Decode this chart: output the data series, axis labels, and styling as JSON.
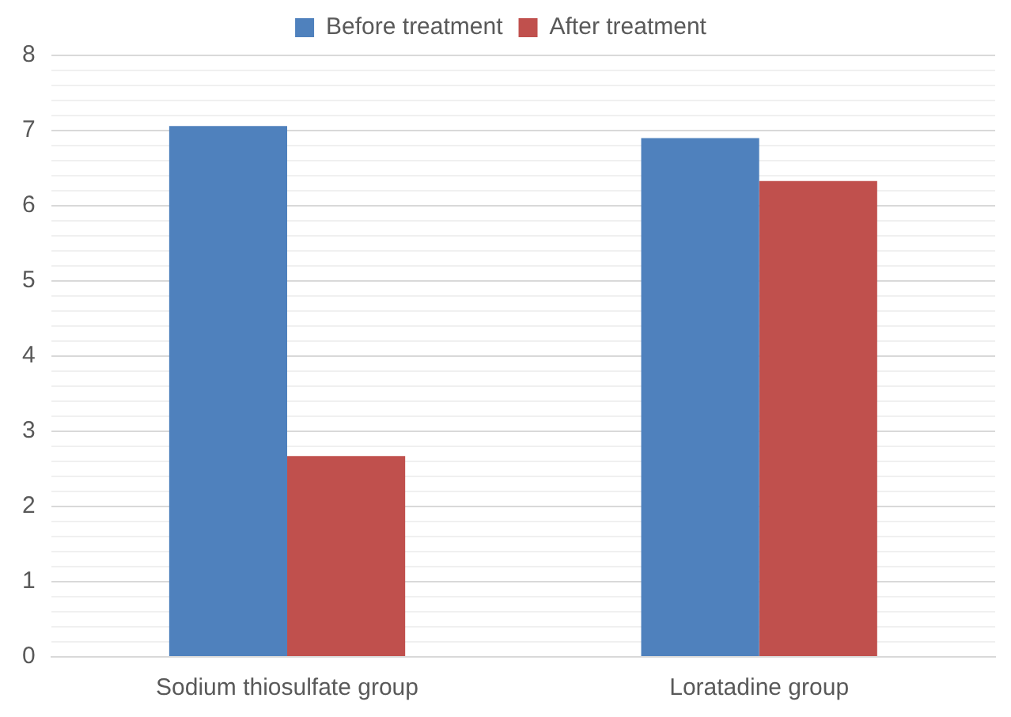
{
  "chart_data": {
    "type": "bar",
    "categories": [
      "Sodium thiosulfate group",
      "Loratadine group"
    ],
    "series": [
      {
        "name": "Before treatment",
        "color": "#4f81bd",
        "values": [
          7.06,
          6.9
        ]
      },
      {
        "name": "After treatment",
        "color": "#c0504d",
        "values": [
          2.67,
          6.33
        ]
      }
    ],
    "ylim": [
      0,
      8
    ],
    "yticks": [
      0,
      {
        "value": 0.2,
        "label": null
      },
      {
        "value": 0.4,
        "label": null
      },
      {
        "value": 0.6,
        "label": null
      },
      {
        "value": 0.8,
        "label": null
      },
      1,
      {
        "value": 1.2,
        "label": null
      },
      {
        "value": 1.4,
        "label": null
      },
      {
        "value": 1.6,
        "label": null
      },
      {
        "value": 1.8,
        "label": null
      },
      2,
      {
        "value": 2.2,
        "label": null
      },
      {
        "value": 2.4,
        "label": null
      },
      {
        "value": 2.6,
        "label": null
      },
      {
        "value": 2.8,
        "label": null
      },
      3,
      {
        "value": 3.2,
        "label": null
      },
      {
        "value": 3.4,
        "label": null
      },
      {
        "value": 3.6,
        "label": null
      },
      {
        "value": 3.8,
        "label": null
      },
      4,
      {
        "value": 4.2,
        "label": null
      },
      {
        "value": 4.4,
        "label": null
      },
      {
        "value": 4.6,
        "label": null
      },
      {
        "value": 4.8,
        "label": null
      },
      5,
      {
        "value": 5.2,
        "label": null
      },
      {
        "value": 5.4,
        "label": null
      },
      {
        "value": 5.6,
        "label": null
      },
      {
        "value": 5.8,
        "label": null
      },
      6,
      {
        "value": 6.2,
        "label": null
      },
      {
        "value": 6.4,
        "label": null
      },
      {
        "value": 6.6,
        "label": null
      },
      {
        "value": 6.8,
        "label": null
      },
      7,
      {
        "value": 7.2,
        "label": null
      },
      {
        "value": 7.4,
        "label": null
      },
      {
        "value": 7.6,
        "label": null
      },
      {
        "value": 7.8,
        "label": null
      },
      8
    ],
    "grid": "y",
    "legend": "top"
  }
}
